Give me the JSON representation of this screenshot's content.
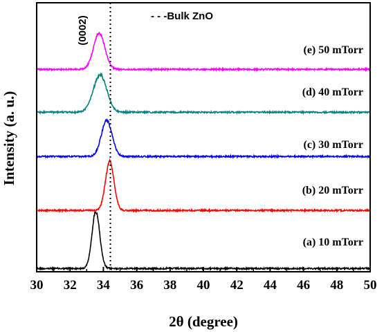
{
  "chart_data": {
    "type": "line",
    "xlabel": "2θ (degree)",
    "ylabel": "Intensity (a. u.)",
    "xlim": [
      30,
      50
    ],
    "x_ticks": [
      "30",
      "32",
      "34",
      "36",
      "38",
      "40",
      "42",
      "44",
      "46",
      "48",
      "50"
    ],
    "grid": false,
    "legend": {
      "label": "- - -Bulk ZnO",
      "placement": "top-center"
    },
    "reference_line": {
      "name": "Bulk ZnO",
      "x": 34.42,
      "style": "dotted",
      "color": "#000000"
    },
    "peak_annotation": {
      "text": "(0002)",
      "x": 33.7
    },
    "series": [
      {
        "name": "(a) 10 mTorr",
        "color": "#000000",
        "peak_x": 33.55,
        "peak_height": 0.22,
        "fwhm": 0.55
      },
      {
        "name": "(b) 20 mTorr",
        "color": "#ff0000",
        "peak_x": 34.38,
        "peak_height": 0.19,
        "fwhm": 0.6
      },
      {
        "name": "(c) 30 mTorr",
        "color": "#0000ff",
        "peak_x": 34.2,
        "peak_height": 0.14,
        "fwhm": 0.75
      },
      {
        "name": "(d) 40 mTorr",
        "color": "#008080",
        "peak_x": 33.8,
        "peak_height": 0.145,
        "fwhm": 0.95
      },
      {
        "name": "(e) 50 mTorr",
        "color": "#ff00ff",
        "peak_x": 33.75,
        "peak_height": 0.14,
        "fwhm": 0.8
      }
    ]
  }
}
